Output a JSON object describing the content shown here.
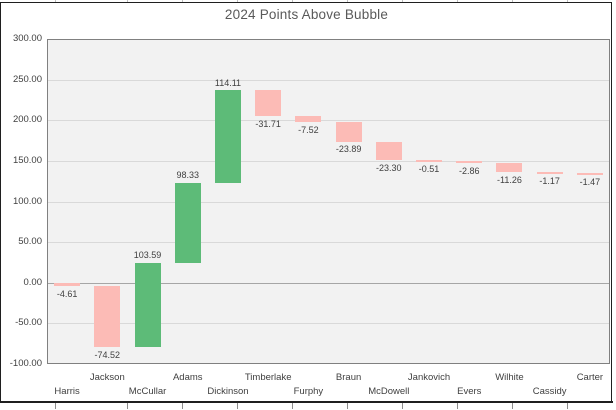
{
  "title": "2024 Points Above Bubble",
  "colors": {
    "increase_bar": "#5dbb78",
    "decrease_bar": "#fcbbb6",
    "plot_background": "#f2f2f2",
    "gridline": "#d9d9d9",
    "zero_line": "#a6a6a6",
    "plot_border": "#808080",
    "label_text": "#404040",
    "title_text": "#595959"
  },
  "chart_data": {
    "type": "bar",
    "subtype": "waterfall",
    "title": "2024 Points Above Bubble",
    "categories": [
      "Harris",
      "Jackson",
      "McCullar",
      "Adams",
      "Dickinson",
      "Timberlake",
      "Furphy",
      "Braun",
      "McDowell",
      "Jankovich",
      "Evers",
      "Wilhite",
      "Cassidy",
      "Carter"
    ],
    "values": [
      -4.61,
      -74.52,
      103.59,
      98.33,
      114.11,
      -31.71,
      -7.52,
      -23.89,
      -23.3,
      -0.51,
      -2.86,
      -11.26,
      -1.17,
      -1.47
    ],
    "data_labels": [
      "-4.61",
      "-74.52",
      "103.59",
      "98.33",
      "114.11",
      "-31.71",
      "-7.52",
      "-23.89",
      "-23.30",
      "-0.51",
      "-2.86",
      "-11.26",
      "-1.17",
      "-1.47"
    ],
    "y_ticks": [
      "300.00",
      "250.00",
      "200.00",
      "150.00",
      "100.00",
      "50.00",
      "0.00",
      "-50.00",
      "-100.00"
    ],
    "ylim": [
      -100,
      300
    ],
    "grid": true,
    "legend": false,
    "xlabel": "",
    "ylabel": ""
  }
}
